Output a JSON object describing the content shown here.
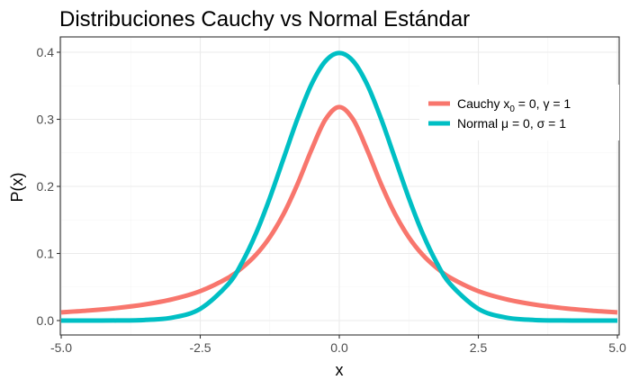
{
  "chart_data": {
    "type": "line",
    "title": "Distribuciones Cauchy vs Normal Estándar",
    "xlabel": "x",
    "ylabel": "P(x)",
    "xlim": [
      -5,
      5
    ],
    "ylim": [
      0,
      0.4
    ],
    "x_ticks": [
      -5.0,
      -2.5,
      0.0,
      2.5,
      5.0
    ],
    "x_tick_labels": [
      "-5.0",
      "-2.5",
      "0.0",
      "2.5",
      "5.0"
    ],
    "y_ticks": [
      0.0,
      0.1,
      0.2,
      0.3,
      0.4
    ],
    "y_tick_labels": [
      "0.0",
      "0.1",
      "0.2",
      "0.3",
      "0.4"
    ],
    "grid": true,
    "legend_position": "top-right",
    "series": [
      {
        "name": "Cauchy x₀ = 0, γ = 1",
        "legend_parts": [
          "Cauchy x",
          "0",
          " = 0, γ = 1"
        ],
        "color": "#F8766D",
        "x": [
          -5,
          -4.5,
          -4,
          -3.5,
          -3,
          -2.5,
          -2,
          -1.75,
          -1.5,
          -1.25,
          -1,
          -0.75,
          -0.5,
          -0.25,
          0,
          0.25,
          0.5,
          0.75,
          1,
          1.25,
          1.5,
          1.75,
          2,
          2.5,
          3,
          3.5,
          4,
          4.5,
          5
        ],
        "y": [
          0.0122,
          0.015,
          0.0187,
          0.024,
          0.0318,
          0.0439,
          0.0637,
          0.0786,
          0.0979,
          0.1242,
          0.1592,
          0.2037,
          0.2546,
          0.2996,
          0.3183,
          0.2996,
          0.2546,
          0.2037,
          0.1592,
          0.1242,
          0.0979,
          0.0786,
          0.0637,
          0.0439,
          0.0318,
          0.024,
          0.0187,
          0.015,
          0.0122
        ]
      },
      {
        "name": "Normal μ = 0, σ = 1",
        "color": "#00BFC4",
        "x": [
          -5,
          -4.5,
          -4,
          -3.5,
          -3,
          -2.5,
          -2,
          -1.75,
          -1.5,
          -1.25,
          -1,
          -0.75,
          -0.5,
          -0.25,
          0,
          0.25,
          0.5,
          0.75,
          1,
          1.25,
          1.5,
          1.75,
          2,
          2.5,
          3,
          3.5,
          4,
          4.5,
          5
        ],
        "y": [
          0.0,
          0.0,
          0.0001,
          0.0009,
          0.0044,
          0.0175,
          0.054,
          0.0863,
          0.1295,
          0.1826,
          0.242,
          0.3011,
          0.3521,
          0.3867,
          0.3989,
          0.3867,
          0.3521,
          0.3011,
          0.242,
          0.1826,
          0.1295,
          0.0863,
          0.054,
          0.0175,
          0.0044,
          0.0009,
          0.0001,
          0.0,
          0.0
        ]
      }
    ]
  }
}
